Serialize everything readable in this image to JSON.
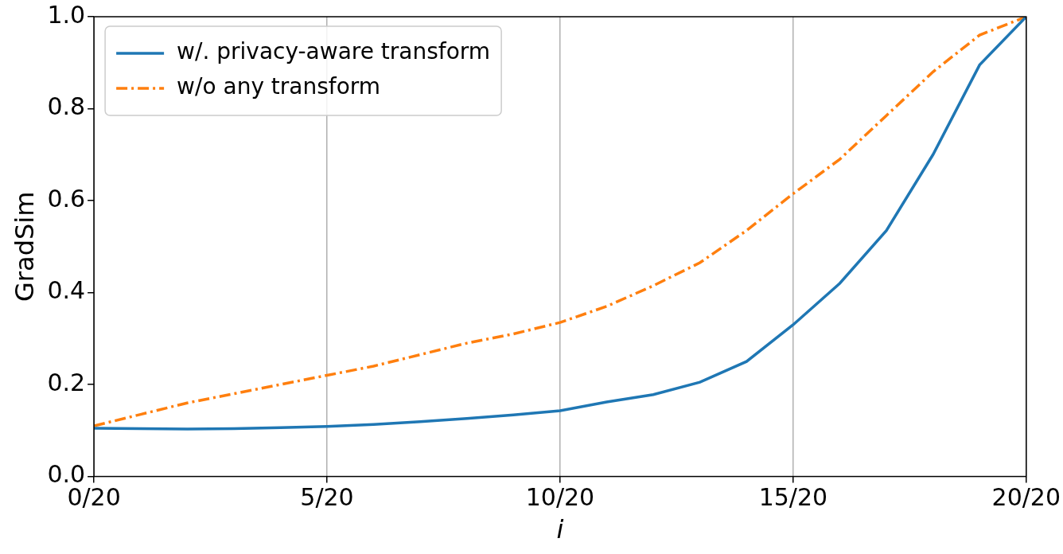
{
  "chart_data": {
    "type": "line",
    "x_label": "i",
    "y_label": "GradSim",
    "x": [
      0,
      1,
      2,
      3,
      4,
      5,
      6,
      7,
      8,
      9,
      10,
      11,
      12,
      13,
      14,
      15,
      16,
      17,
      18,
      19,
      20
    ],
    "series": [
      {
        "name": "w/. privacy-aware transform",
        "color": "#1f77b4",
        "line_style": "solid",
        "values": [
          0.105,
          0.104,
          0.103,
          0.104,
          0.106,
          0.109,
          0.113,
          0.119,
          0.126,
          0.134,
          0.143,
          0.162,
          0.178,
          0.205,
          0.25,
          0.33,
          0.42,
          0.535,
          0.7,
          0.895,
          1.0
        ]
      },
      {
        "name": "w/o any transform",
        "color": "#ff7f0e",
        "line_style": "dashdot",
        "values": [
          0.11,
          0.135,
          0.16,
          0.18,
          0.2,
          0.22,
          0.24,
          0.265,
          0.29,
          0.31,
          0.335,
          0.37,
          0.415,
          0.465,
          0.535,
          0.615,
          0.69,
          0.785,
          0.88,
          0.96,
          1.0
        ]
      }
    ],
    "xlim": [
      0,
      20
    ],
    "xticks": [
      {
        "value": 0,
        "label": "0/20"
      },
      {
        "value": 5,
        "label": "5/20"
      },
      {
        "value": 10,
        "label": "10/20"
      },
      {
        "value": 15,
        "label": "15/20"
      },
      {
        "value": 20,
        "label": "20/20"
      }
    ],
    "ylim": [
      0,
      1
    ],
    "yticks": [
      {
        "value": 0,
        "label": "0.0"
      },
      0.2,
      0.4,
      0.6,
      0.8,
      {
        "value": 1,
        "label": "1.0"
      }
    ],
    "grid": "x",
    "legend": "upper left"
  }
}
